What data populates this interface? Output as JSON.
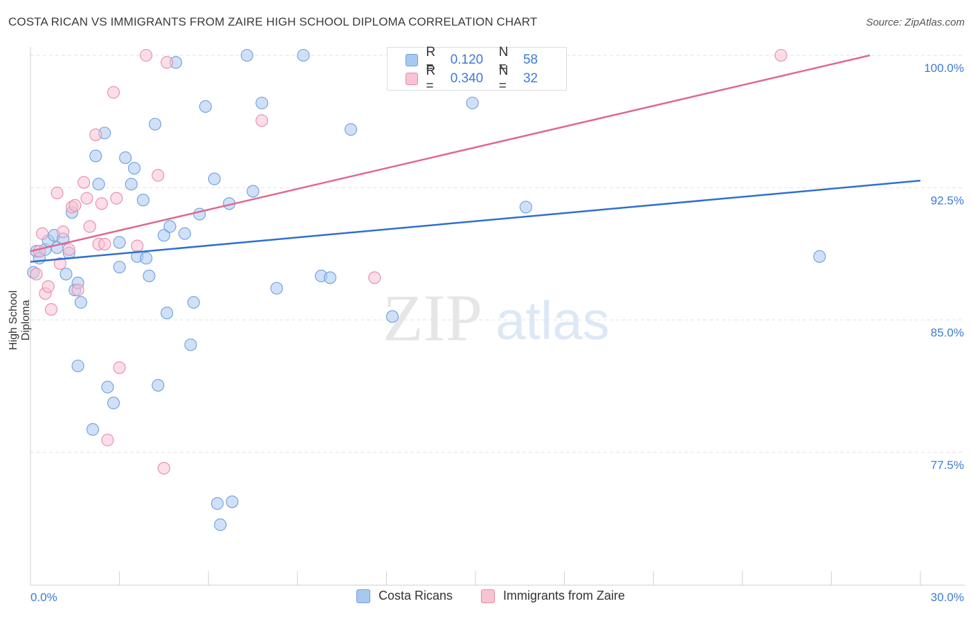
{
  "title": "COSTA RICAN VS IMMIGRANTS FROM ZAIRE HIGH SCHOOL DIPLOMA CORRELATION CHART",
  "source": "Source: ZipAtlas.com",
  "watermark": {
    "zip": "ZIP",
    "atlas": "atlas"
  },
  "legend": {
    "rows": [
      {
        "r_label": "R =",
        "r_value": "0.120",
        "n_label": "N =",
        "n_value": "58",
        "color": "#a9c8f0",
        "border": "#6a9ee0"
      },
      {
        "r_label": "R =",
        "r_value": "0.340",
        "n_label": "N =",
        "n_value": "32",
        "color": "#f8c3d3",
        "border": "#e88aa8"
      }
    ]
  },
  "bottom_legend": [
    {
      "label": "Costa Ricans",
      "color": "#a9c8f0",
      "border": "#6a9ee0"
    },
    {
      "label": "Immigrants from Zaire",
      "color": "#f8c3d3",
      "border": "#e88aa8"
    }
  ],
  "chart_data": {
    "type": "scatter",
    "xlabel": "",
    "ylabel": "High School Diploma",
    "xlim": [
      0,
      30
    ],
    "ylim": [
      71.5,
      101.7
    ],
    "x_tick_labels": [
      "0.0%",
      "30.0%"
    ],
    "y_ticks": [
      77.5,
      85.0,
      92.5,
      100.0
    ],
    "y_tick_labels": [
      "77.5%",
      "85.0%",
      "92.5%",
      "100.0%"
    ],
    "grid": true,
    "series": [
      {
        "name": "Costa Ricans",
        "color": "#6a9ee0",
        "fill": "#a9c8f0",
        "trend": {
          "x": [
            0,
            30
          ],
          "y": [
            88.3,
            92.9
          ],
          "color": "#2f6fd0"
        },
        "points": [
          [
            0.2,
            88.9
          ],
          [
            0.3,
            88.5
          ],
          [
            0.5,
            89.0
          ],
          [
            0.6,
            89.5
          ],
          [
            0.8,
            89.8
          ],
          [
            0.9,
            89.1
          ],
          [
            1.1,
            89.6
          ],
          [
            1.2,
            87.6
          ],
          [
            1.3,
            88.8
          ],
          [
            1.4,
            91.1
          ],
          [
            1.5,
            86.7
          ],
          [
            1.6,
            87.1
          ],
          [
            1.7,
            86.0
          ],
          [
            1.6,
            82.4
          ],
          [
            2.1,
            78.8
          ],
          [
            2.3,
            92.7
          ],
          [
            2.2,
            94.3
          ],
          [
            2.5,
            95.6
          ],
          [
            2.6,
            81.2
          ],
          [
            2.8,
            80.3
          ],
          [
            3.0,
            89.4
          ],
          [
            3.0,
            88.0
          ],
          [
            3.2,
            94.2
          ],
          [
            3.4,
            92.7
          ],
          [
            3.5,
            93.6
          ],
          [
            3.6,
            88.6
          ],
          [
            3.8,
            91.8
          ],
          [
            3.9,
            88.5
          ],
          [
            4.0,
            87.5
          ],
          [
            4.2,
            96.1
          ],
          [
            4.3,
            81.3
          ],
          [
            4.5,
            89.8
          ],
          [
            4.6,
            85.4
          ],
          [
            4.7,
            90.3
          ],
          [
            4.9,
            99.6
          ],
          [
            5.2,
            89.9
          ],
          [
            5.4,
            83.6
          ],
          [
            5.5,
            86.0
          ],
          [
            5.7,
            91.0
          ],
          [
            5.9,
            97.1
          ],
          [
            6.2,
            93.0
          ],
          [
            6.3,
            74.6
          ],
          [
            6.4,
            73.4
          ],
          [
            6.7,
            91.6
          ],
          [
            6.8,
            74.7
          ],
          [
            7.3,
            100.0
          ],
          [
            7.5,
            92.3
          ],
          [
            7.8,
            97.3
          ],
          [
            8.3,
            86.8
          ],
          [
            9.2,
            100.0
          ],
          [
            9.8,
            87.5
          ],
          [
            10.1,
            87.4
          ],
          [
            10.8,
            95.8
          ],
          [
            12.2,
            85.2
          ],
          [
            14.9,
            97.3
          ],
          [
            16.7,
            91.4
          ],
          [
            26.6,
            88.6
          ],
          [
            0.1,
            87.7
          ]
        ]
      },
      {
        "name": "Immigrants from Zaire",
        "color": "#e88aa8",
        "fill": "#f8c3d3",
        "trend": {
          "x": [
            0,
            28.3
          ],
          "y": [
            88.9,
            100.0
          ],
          "color": "#e06890"
        },
        "points": [
          [
            0.2,
            87.6
          ],
          [
            0.3,
            88.9
          ],
          [
            0.4,
            89.9
          ],
          [
            0.5,
            86.5
          ],
          [
            0.6,
            86.9
          ],
          [
            0.7,
            85.6
          ],
          [
            0.9,
            92.2
          ],
          [
            1.0,
            88.2
          ],
          [
            1.1,
            90.0
          ],
          [
            1.3,
            89.0
          ],
          [
            1.4,
            91.4
          ],
          [
            1.5,
            91.5
          ],
          [
            1.6,
            86.7
          ],
          [
            1.8,
            92.8
          ],
          [
            1.9,
            91.9
          ],
          [
            2.0,
            90.3
          ],
          [
            2.2,
            95.5
          ],
          [
            2.3,
            89.3
          ],
          [
            2.4,
            91.6
          ],
          [
            2.5,
            89.3
          ],
          [
            2.6,
            78.2
          ],
          [
            2.8,
            97.9
          ],
          [
            2.9,
            91.9
          ],
          [
            3.0,
            82.3
          ],
          [
            3.6,
            89.2
          ],
          [
            3.9,
            100.0
          ],
          [
            4.3,
            93.2
          ],
          [
            4.5,
            76.6
          ],
          [
            4.6,
            99.6
          ],
          [
            7.8,
            96.3
          ],
          [
            11.6,
            87.4
          ],
          [
            25.3,
            100.0
          ]
        ]
      }
    ]
  }
}
